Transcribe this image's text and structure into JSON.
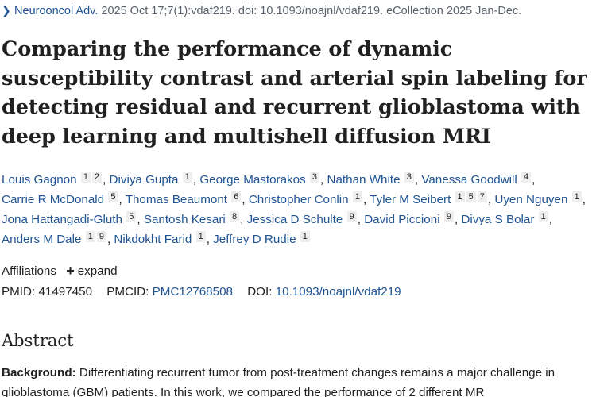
{
  "citation": {
    "journal": "Neurooncol Adv.",
    "details": " 2025 Oct 17;7(1):vdaf219. doi: 10.1093/noajnl/vdaf219. eCollection 2025 Jan-Dec."
  },
  "title": "Comparing the performance of dynamic susceptibility contrast and arterial spin labeling for detecting residual and recurrent glioblastoma with deep learning and multishell diffusion MRI",
  "authors": [
    {
      "name": "Louis Gagnon",
      "sups": [
        "1",
        "2"
      ]
    },
    {
      "name": "Diviya Gupta",
      "sups": [
        "1"
      ]
    },
    {
      "name": "George Mastorakos",
      "sups": [
        "3"
      ]
    },
    {
      "name": "Nathan White",
      "sups": [
        "3"
      ]
    },
    {
      "name": "Vanessa Goodwill",
      "sups": [
        "4"
      ]
    },
    {
      "name": "Carrie R McDonald",
      "sups": [
        "5"
      ]
    },
    {
      "name": "Thomas Beaumont",
      "sups": [
        "6"
      ]
    },
    {
      "name": "Christopher Conlin",
      "sups": [
        "1"
      ]
    },
    {
      "name": "Tyler M Seibert",
      "sups": [
        "1",
        "5",
        "7"
      ]
    },
    {
      "name": "Uyen Nguyen",
      "sups": [
        "1"
      ]
    },
    {
      "name": "Jona Hattangadi-Gluth",
      "sups": [
        "5"
      ]
    },
    {
      "name": "Santosh Kesari",
      "sups": [
        "8"
      ]
    },
    {
      "name": "Jessica D Schulte",
      "sups": [
        "9"
      ]
    },
    {
      "name": "David Piccioni",
      "sups": [
        "9"
      ]
    },
    {
      "name": "Divya S Bolar",
      "sups": [
        "1"
      ]
    },
    {
      "name": "Anders M Dale",
      "sups": [
        "1",
        "9"
      ]
    },
    {
      "name": "Nikdokht Farid",
      "sups": [
        "1"
      ]
    },
    {
      "name": "Jeffrey D Rudie",
      "sups": [
        "1"
      ]
    }
  ],
  "affiliations": {
    "label": "Affiliations",
    "expand_label": "expand"
  },
  "ids": {
    "pmid_label": "PMID:",
    "pmid": "41497450",
    "pmcid_label": "PMCID:",
    "pmcid": "PMC12768508",
    "doi_label": "DOI:",
    "doi": "10.1093/noajnl/vdaf219"
  },
  "abstract": {
    "heading": "Abstract",
    "background_label": "Background:",
    "background_text": " Differentiating recurrent tumor from post-treatment changes remains a major challenge in glioblastoma (GBM) patients. In this work, we compared the performance of 2 different MR"
  },
  "colors": {
    "link": "#205493",
    "text": "#212121",
    "muted": "#5b616b",
    "sup_bg": "#eeeeee"
  },
  "icons": {
    "citation": "chevron-right-icon",
    "expand": "plus-icon"
  }
}
